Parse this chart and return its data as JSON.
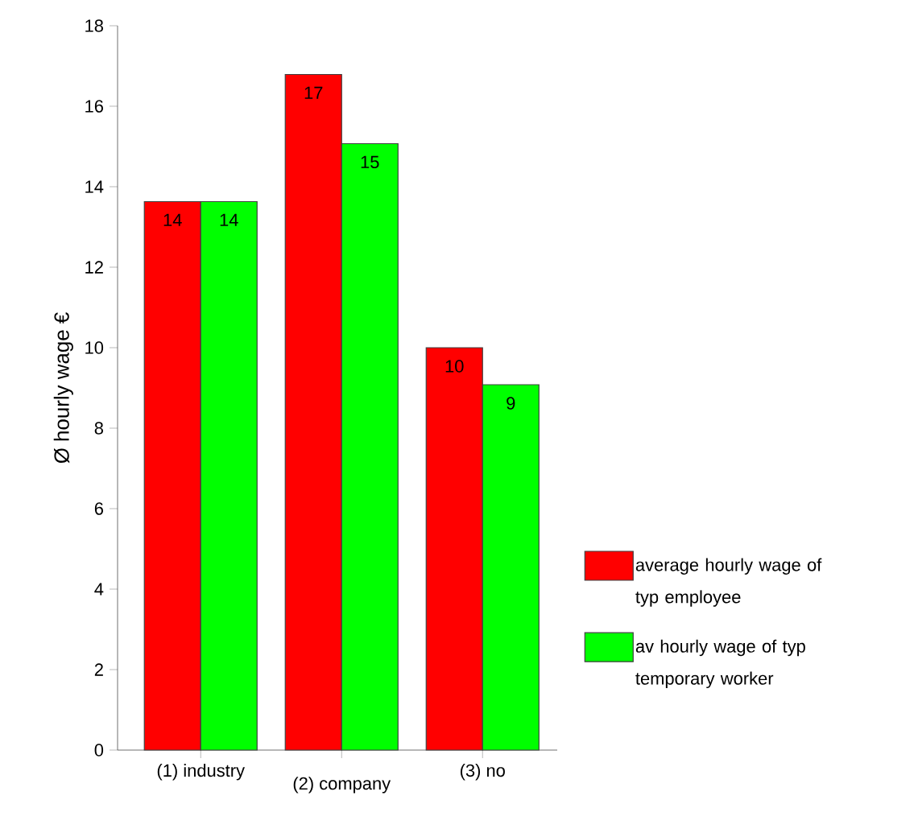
{
  "chart_data": {
    "type": "bar",
    "ylabel": "Ø hourly wage €",
    "categories": [
      "(1) industry",
      "(2) company",
      "(3) no"
    ],
    "series": [
      {
        "name": "average hourly wage of typ employee",
        "color": "#ff0000",
        "values": [
          13.63,
          16.79,
          10.0
        ],
        "value_labels": [
          "14",
          "17",
          "10"
        ]
      },
      {
        "name": "av hourly wage of typ temporary worker",
        "color": "#00ff00",
        "values": [
          13.63,
          15.07,
          9.08
        ],
        "value_labels": [
          "14",
          "15",
          "9"
        ]
      }
    ],
    "ylim": [
      0,
      18
    ],
    "yticks": [
      0,
      2,
      4,
      6,
      8,
      10,
      12,
      14,
      16,
      18
    ],
    "legend": "right",
    "grid": false
  }
}
